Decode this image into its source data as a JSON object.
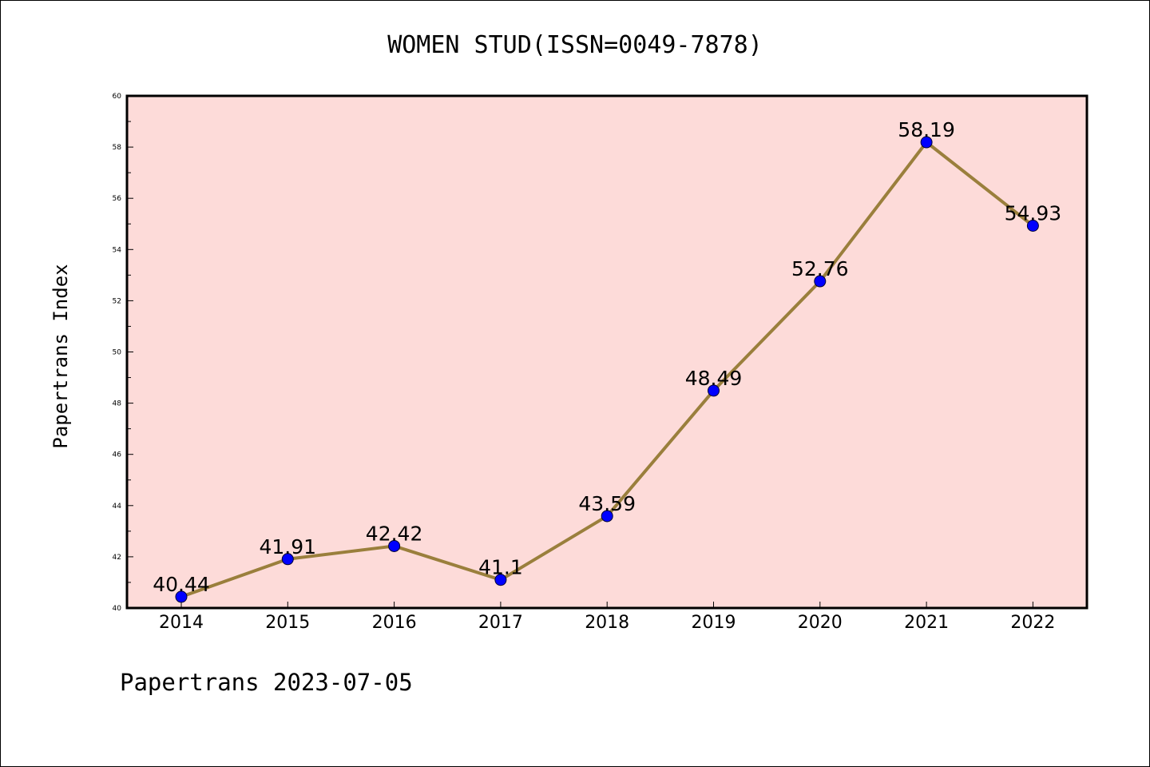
{
  "chart_data": {
    "type": "line",
    "title": "WOMEN STUD(ISSN=0049-7878)",
    "ylabel": "Papertrans Index",
    "xlabel": "",
    "footer": "Papertrans 2023-07-05",
    "x": [
      "2014",
      "2015",
      "2016",
      "2017",
      "2018",
      "2019",
      "2020",
      "2021",
      "2022"
    ],
    "values": [
      40.44,
      41.91,
      42.42,
      41.1,
      43.59,
      48.49,
      52.76,
      58.19,
      54.93
    ],
    "data_labels": [
      "40.44",
      "41.91",
      "42.42",
      "41.1",
      "43.59",
      "48.49",
      "52.76",
      "58.19",
      "54.93"
    ],
    "ylim": [
      40,
      60
    ],
    "yticks": [
      40,
      42,
      44,
      46,
      48,
      50,
      52,
      54,
      56,
      58,
      60
    ],
    "grid": false,
    "legend": "none",
    "colors": {
      "plot_background": "#fddbd9",
      "line": "#9a7f3c",
      "marker": "#0000ff"
    }
  }
}
